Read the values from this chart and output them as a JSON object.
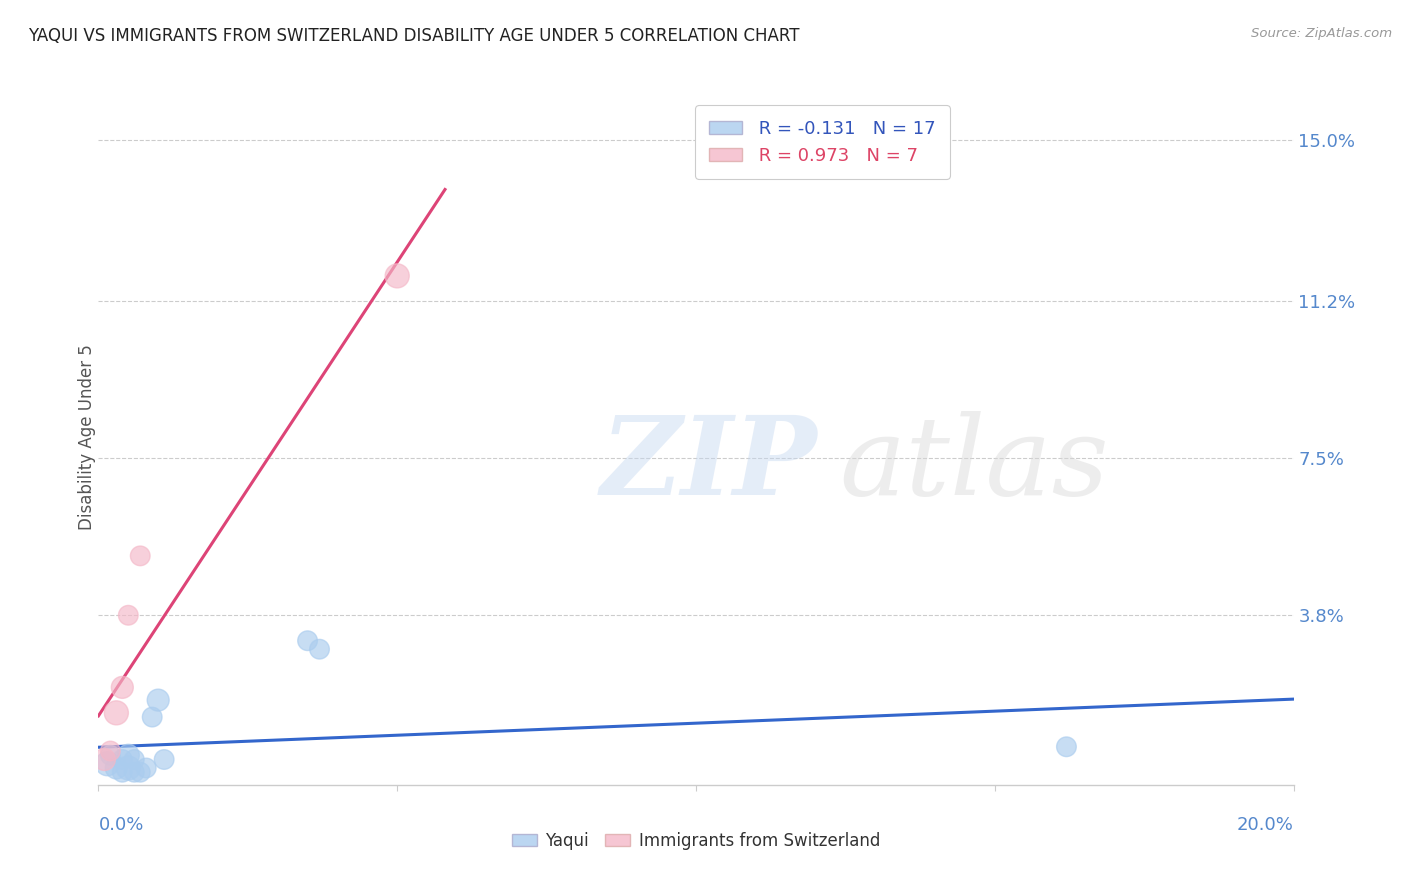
{
  "title": "YAQUI VS IMMIGRANTS FROM SWITZERLAND DISABILITY AGE UNDER 5 CORRELATION CHART",
  "source": "Source: ZipAtlas.com",
  "ylabel": "Disability Age Under 5",
  "xlim": [
    0.0,
    0.2
  ],
  "ylim": [
    -0.002,
    0.162
  ],
  "yticks": [
    0.038,
    0.075,
    0.112,
    0.15
  ],
  "ytick_labels": [
    "3.8%",
    "7.5%",
    "11.2%",
    "15.0%"
  ],
  "xticks": [
    0.0,
    0.05,
    0.1,
    0.15,
    0.2
  ],
  "xtick_labels": [
    "",
    "",
    "",
    "",
    ""
  ],
  "yaqui_x": [
    0.0015,
    0.002,
    0.003,
    0.004,
    0.004,
    0.005,
    0.005,
    0.006,
    0.006,
    0.007,
    0.008,
    0.009,
    0.01,
    0.011,
    0.035,
    0.037,
    0.162
  ],
  "yaqui_y": [
    0.003,
    0.005,
    0.002,
    0.004,
    0.001,
    0.005,
    0.002,
    0.001,
    0.004,
    0.001,
    0.002,
    0.014,
    0.018,
    0.004,
    0.032,
    0.03,
    0.007
  ],
  "yaqui_sizes": [
    300,
    200,
    250,
    200,
    200,
    250,
    300,
    200,
    200,
    200,
    200,
    200,
    250,
    200,
    200,
    200,
    200
  ],
  "swiss_x": [
    0.001,
    0.002,
    0.003,
    0.004,
    0.005,
    0.007,
    0.05
  ],
  "swiss_y": [
    0.004,
    0.006,
    0.015,
    0.021,
    0.038,
    0.052,
    0.118
  ],
  "swiss_sizes": [
    250,
    200,
    300,
    250,
    200,
    200,
    300
  ],
  "yaqui_color": "#aaccee",
  "swiss_color": "#f4b8c8",
  "yaqui_R": -0.131,
  "yaqui_N": 17,
  "swiss_R": 0.973,
  "swiss_N": 7,
  "trend_blue": "#3366cc",
  "trend_pink": "#dd4477",
  "legend_text_blue": "#3355bb",
  "legend_text_pink": "#dd4466",
  "background": "#ffffff",
  "grid_color": "#cccccc",
  "tick_color": "#5588cc",
  "spine_color": "#cccccc"
}
